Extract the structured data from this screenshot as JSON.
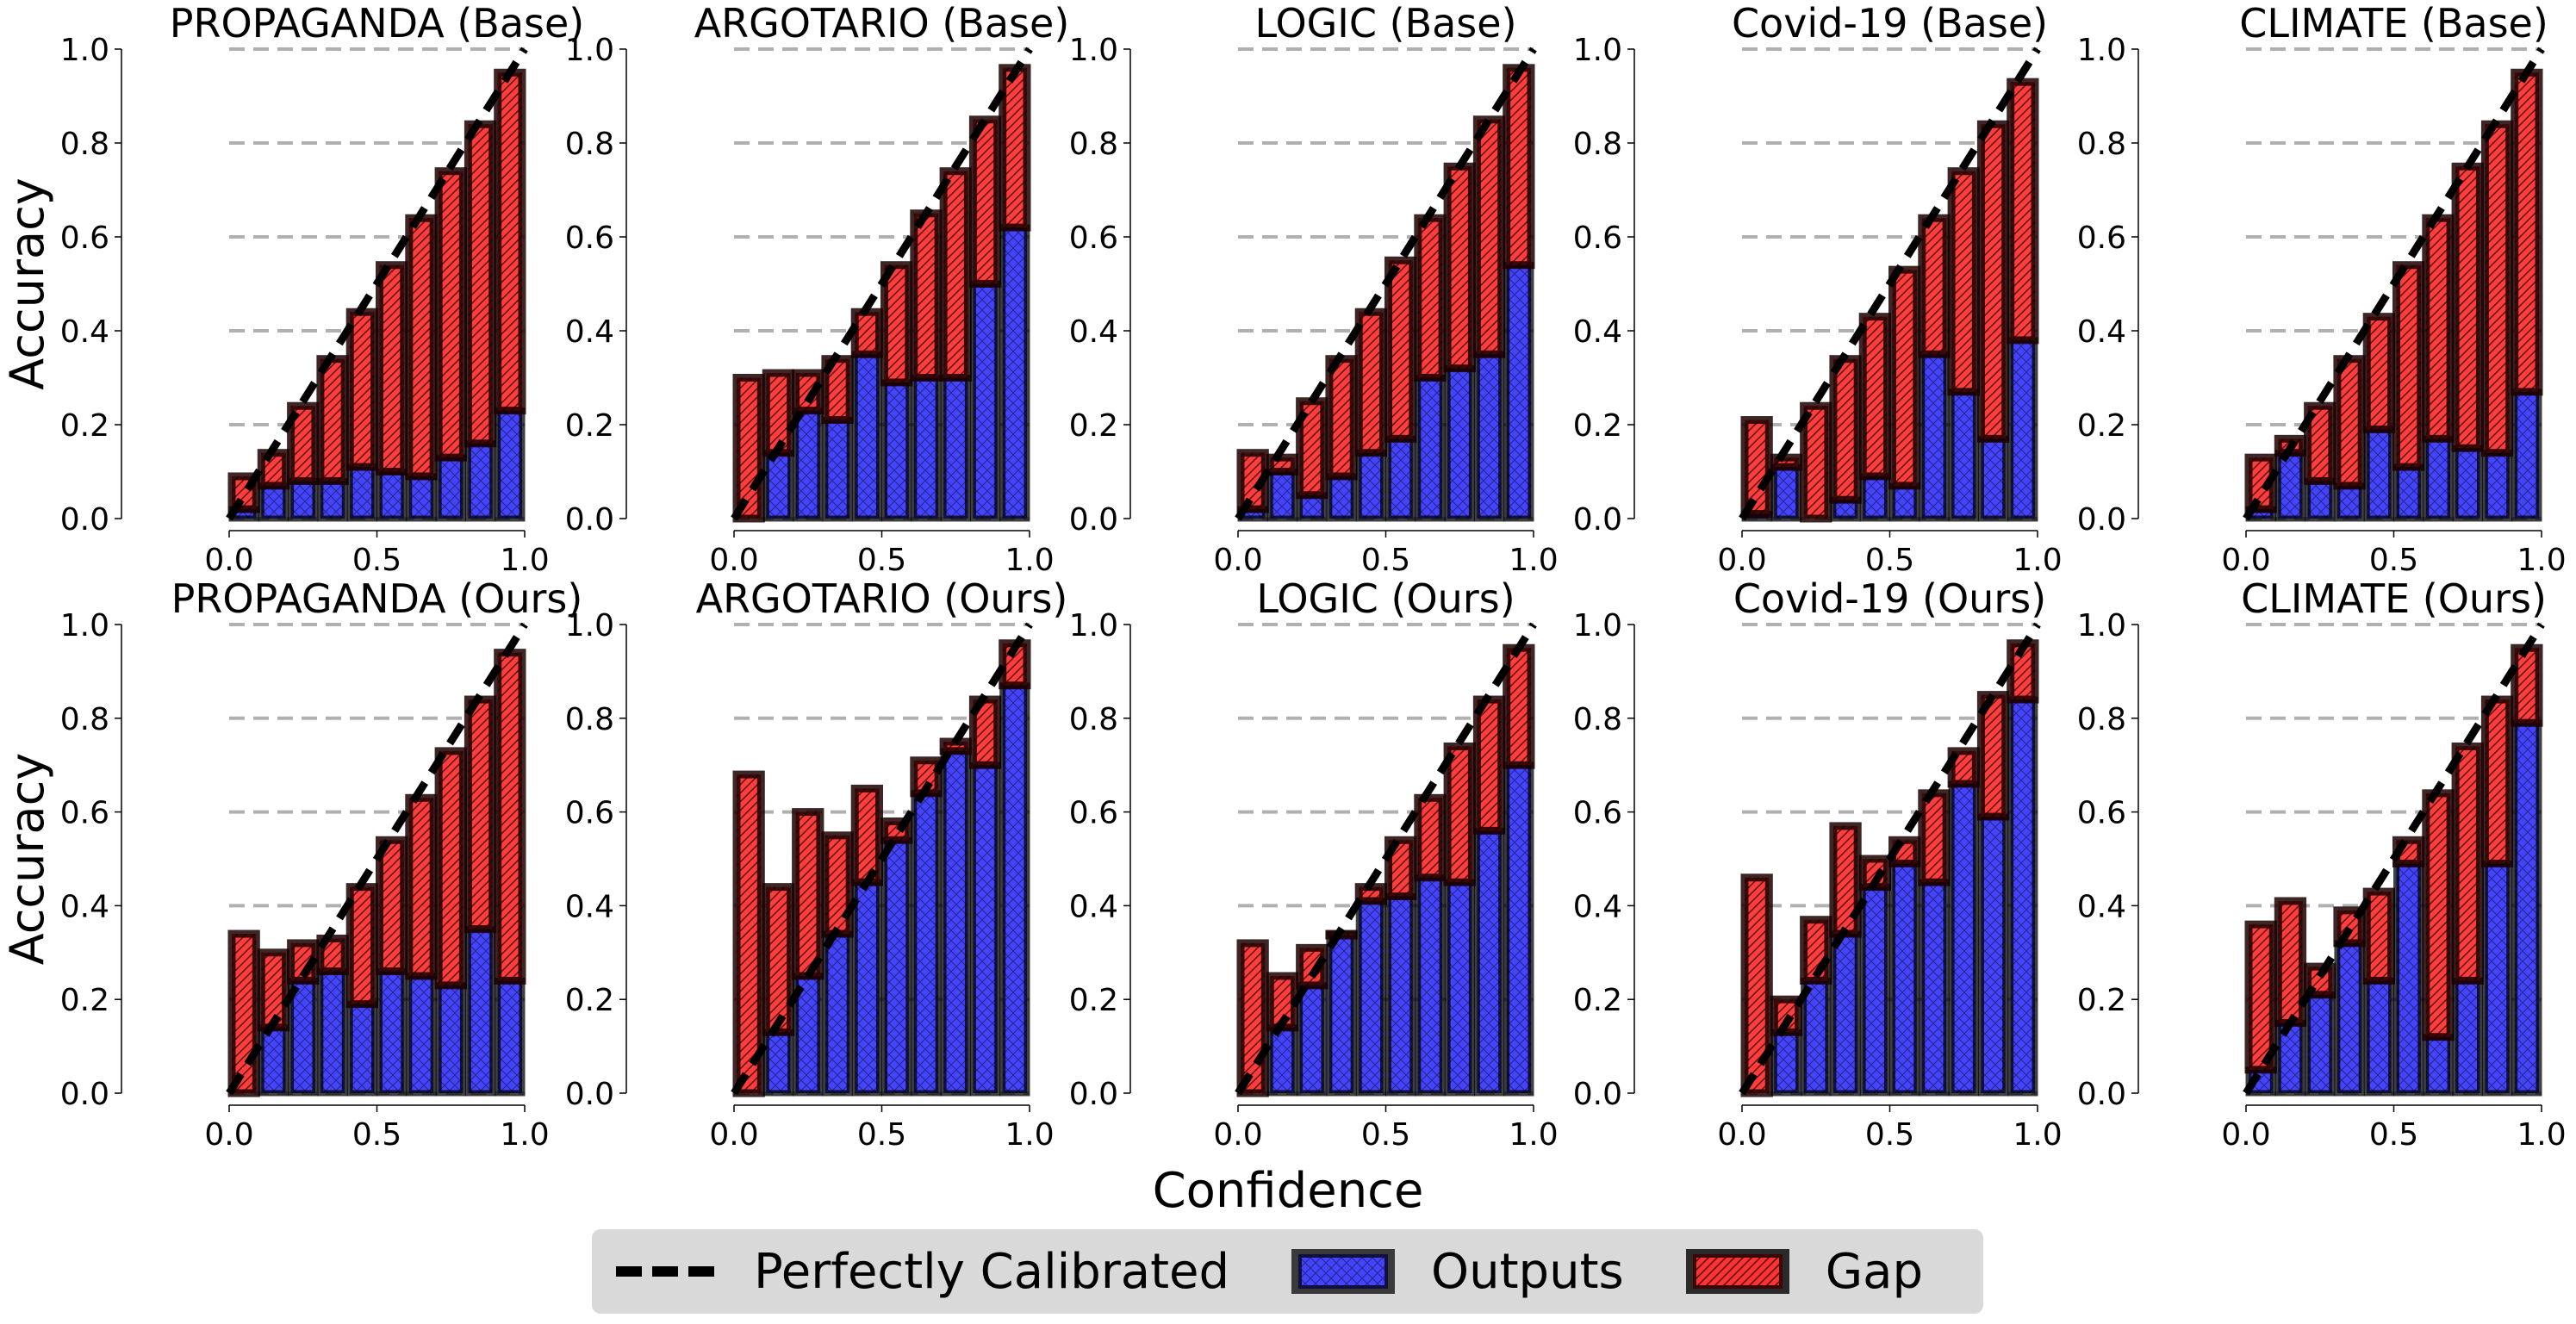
{
  "chart_data": {
    "type": "bar",
    "subtype": "reliability-diagram-grid",
    "xlabel": "Confidence",
    "ylabel": "Accuracy",
    "xlim": [
      0,
      1
    ],
    "ylim": [
      0,
      1
    ],
    "xticks": [
      "0.0",
      "0.5",
      "1.0"
    ],
    "yticks": [
      "0.0",
      "0.2",
      "0.4",
      "0.6",
      "0.8",
      "1.0"
    ],
    "grid": "horizontal dashed",
    "colors": {
      "outputs": "#4444ff",
      "gap": "#ff3333",
      "diagonal": "#000000",
      "grid": "#b0b0b0",
      "legend_bg": "#d9d9d9"
    },
    "legend": {
      "placement": "bottom-center",
      "entries": [
        {
          "label": "Perfectly Calibrated",
          "kind": "dashed-line"
        },
        {
          "label": "Outputs",
          "kind": "blue-hatched"
        },
        {
          "label": "Gap",
          "kind": "red-hatched"
        }
      ]
    },
    "bins": 10,
    "panels": [
      {
        "title": "PROPAGANDA (Base)",
        "row": 0,
        "col": 0,
        "show_ylabel": true,
        "accuracy": [
          0.02,
          0.07,
          0.08,
          0.08,
          0.11,
          0.1,
          0.09,
          0.13,
          0.16,
          0.23
        ],
        "confidence": [
          0.09,
          0.14,
          0.24,
          0.34,
          0.44,
          0.54,
          0.64,
          0.74,
          0.84,
          0.95
        ]
      },
      {
        "title": "ARGOTARIO (Base)",
        "row": 0,
        "col": 1,
        "show_ylabel": false,
        "accuracy": [
          0.0,
          0.14,
          0.23,
          0.21,
          0.35,
          0.29,
          0.3,
          0.3,
          0.5,
          0.62
        ],
        "confidence": [
          0.3,
          0.31,
          0.31,
          0.34,
          0.44,
          0.54,
          0.65,
          0.74,
          0.85,
          0.96
        ]
      },
      {
        "title": "LOGIC (Base)",
        "row": 0,
        "col": 2,
        "show_ylabel": false,
        "accuracy": [
          0.02,
          0.1,
          0.05,
          0.09,
          0.14,
          0.17,
          0.3,
          0.32,
          0.35,
          0.54
        ],
        "confidence": [
          0.14,
          0.13,
          0.25,
          0.34,
          0.44,
          0.55,
          0.64,
          0.75,
          0.85,
          0.96
        ]
      },
      {
        "title": "Covid-19 (Base)",
        "row": 0,
        "col": 3,
        "show_ylabel": false,
        "accuracy": [
          0.01,
          0.11,
          0.0,
          0.04,
          0.09,
          0.07,
          0.35,
          0.27,
          0.17,
          0.38
        ],
        "confidence": [
          0.21,
          0.13,
          0.24,
          0.34,
          0.43,
          0.53,
          0.64,
          0.74,
          0.84,
          0.93
        ]
      },
      {
        "title": "CLIMATE (Base)",
        "row": 0,
        "col": 4,
        "show_ylabel": false,
        "accuracy": [
          0.02,
          0.14,
          0.08,
          0.07,
          0.19,
          0.11,
          0.17,
          0.15,
          0.14,
          0.27
        ],
        "confidence": [
          0.13,
          0.17,
          0.24,
          0.34,
          0.43,
          0.54,
          0.64,
          0.75,
          0.84,
          0.95
        ]
      },
      {
        "title": "PROPAGANDA (Ours)",
        "row": 1,
        "col": 0,
        "show_ylabel": true,
        "accuracy": [
          0.0,
          0.14,
          0.24,
          0.26,
          0.19,
          0.26,
          0.25,
          0.23,
          0.35,
          0.24
        ],
        "confidence": [
          0.34,
          0.3,
          0.32,
          0.33,
          0.44,
          0.54,
          0.63,
          0.73,
          0.84,
          0.94
        ]
      },
      {
        "title": "ARGOTARIO (Ours)",
        "row": 1,
        "col": 1,
        "show_ylabel": false,
        "accuracy": [
          0.0,
          0.13,
          0.25,
          0.34,
          0.45,
          0.54,
          0.64,
          0.73,
          0.7,
          0.87
        ],
        "confidence": [
          0.68,
          0.44,
          0.6,
          0.55,
          0.65,
          0.58,
          0.71,
          0.75,
          0.84,
          0.96
        ]
      },
      {
        "title": "LOGIC (Ours)",
        "row": 1,
        "col": 2,
        "show_ylabel": false,
        "accuracy": [
          0.0,
          0.14,
          0.23,
          0.34,
          0.41,
          0.42,
          0.46,
          0.45,
          0.56,
          0.7
        ],
        "confidence": [
          0.32,
          0.25,
          0.31,
          0.34,
          0.44,
          0.54,
          0.63,
          0.74,
          0.84,
          0.95
        ]
      },
      {
        "title": "Covid-19 (Ours)",
        "row": 1,
        "col": 3,
        "show_ylabel": false,
        "accuracy": [
          0.0,
          0.13,
          0.24,
          0.34,
          0.44,
          0.49,
          0.45,
          0.66,
          0.59,
          0.84
        ],
        "confidence": [
          0.46,
          0.2,
          0.37,
          0.57,
          0.5,
          0.54,
          0.64,
          0.73,
          0.85,
          0.96
        ]
      },
      {
        "title": "CLIMATE (Ours)",
        "row": 1,
        "col": 4,
        "show_ylabel": false,
        "accuracy": [
          0.05,
          0.15,
          0.21,
          0.32,
          0.24,
          0.49,
          0.12,
          0.24,
          0.49,
          0.79
        ],
        "confidence": [
          0.36,
          0.41,
          0.27,
          0.39,
          0.43,
          0.54,
          0.64,
          0.74,
          0.84,
          0.95
        ]
      }
    ]
  }
}
